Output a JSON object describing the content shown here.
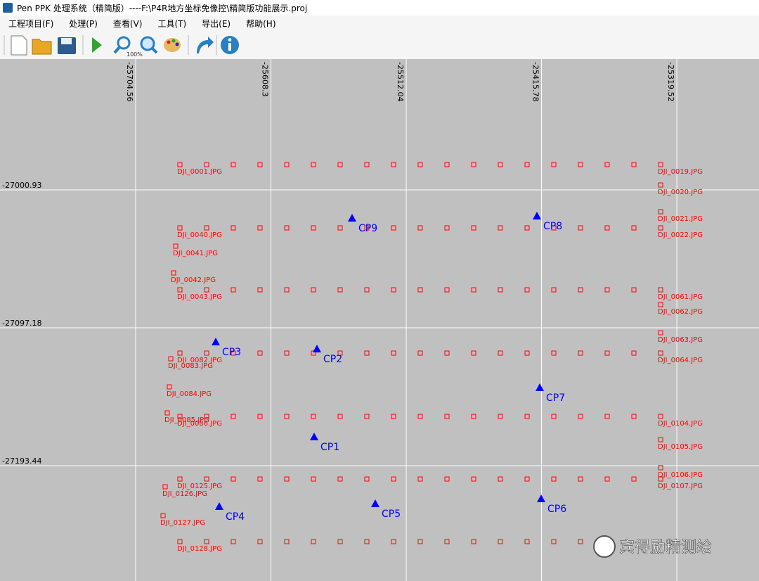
{
  "window": {
    "title": "Pen PPK 处理系统（精简版）----F:\\P4R地方坐标免像控\\精简版功能展示.proj"
  },
  "menu": [
    "工程项目(F)",
    "处理(P)",
    "查看(V)",
    "工具(T)",
    "导出(E)",
    "帮助(H)"
  ],
  "toolbar": {
    "zoom_badge": "100%"
  },
  "chart_data": {
    "type": "scatter",
    "xlim": [
      -25801.07,
      -25261.07
    ],
    "ylim": [
      -27273.98,
      -26909.59
    ],
    "xticks": [
      -25704.56,
      -25608.3,
      -25512.04,
      -25415.78,
      -25319.52
    ],
    "yticks": [
      -27000.93,
      -27097.18,
      -27193.44
    ],
    "grid": true,
    "photo_color": "#ff0000",
    "control_color": "#0000ff",
    "strips": [
      {
        "y": -26983.26,
        "x": [
          -25654.07,
          -25635.07,
          -25616.07,
          -25597.07,
          -25578.07,
          -25559.07,
          -25540.07,
          -25521.07,
          -25502.07,
          -25483.07,
          -25464.07,
          -25445.07,
          -25426.07,
          -25407.07,
          -25388.07,
          -25369.07,
          -25350.07
        ]
      },
      {
        "y": -27027.45,
        "x": [
          -25654.07,
          -25635.07,
          -25616.07,
          -25597.07,
          -25578.07,
          -25559.07,
          -25540.07,
          -25521.07,
          -25502.07,
          -25483.07,
          -25464.07,
          -25445.07,
          -25426.07,
          -25407.07,
          -25388.07,
          -25369.07,
          -25350.07
        ]
      },
      {
        "y": -27070.67,
        "x": [
          -25654.07,
          -25635.07,
          -25616.07,
          -25597.07,
          -25578.07,
          -25559.07,
          -25540.07,
          -25521.07,
          -25502.07,
          -25483.07,
          -25464.07,
          -25445.07,
          -25426.07,
          -25407.07,
          -25388.07,
          -25369.07,
          -25350.07
        ]
      },
      {
        "y": -27114.87,
        "x": [
          -25654.07,
          -25635.07,
          -25616.07,
          -25597.07,
          -25578.07,
          -25559.07,
          -25540.07,
          -25521.07,
          -25502.07,
          -25483.07,
          -25464.07,
          -25445.07,
          -25426.07,
          -25407.07,
          -25388.07,
          -25369.07,
          -25350.07
        ]
      },
      {
        "y": -27159.07,
        "x": [
          -25654.07,
          -25635.07,
          -25616.07,
          -25597.07,
          -25578.07,
          -25559.07,
          -25540.07,
          -25521.07,
          -25502.07,
          -25483.07,
          -25464.07,
          -25445.07,
          -25426.07,
          -25407.07,
          -25388.07,
          -25369.07,
          -25350.07
        ]
      },
      {
        "y": -27202.78,
        "x": [
          -25654.07,
          -25635.07,
          -25616.07,
          -25597.07,
          -25578.07,
          -25559.07,
          -25540.07,
          -25521.07,
          -25502.07,
          -25483.07,
          -25464.07,
          -25445.07,
          -25426.07,
          -25407.07,
          -25388.07,
          -25369.07,
          -25350.07
        ]
      },
      {
        "y": -27246.48,
        "x": [
          -25654.07,
          -25635.07,
          -25616.07,
          -25597.07,
          -25578.07,
          -25559.07,
          -25540.07,
          -25521.07,
          -25502.07,
          -25483.07,
          -25464.07,
          -25445.07,
          -25426.07,
          -25407.07,
          -25388.07
        ]
      }
    ],
    "photos": [
      {
        "name": "DJI_0001.JPG",
        "x": -25673.07,
        "y": -26983.26
      },
      {
        "name": "DJI_0019.JPG",
        "x": -25331.07,
        "y": -26983.26
      },
      {
        "name": "DJI_0020.JPG",
        "x": -25331.07,
        "y": -26997.5
      },
      {
        "name": "DJI_0021.JPG",
        "x": -25331.07,
        "y": -27016.16
      },
      {
        "name": "DJI_0022.JPG",
        "x": -25331.07,
        "y": -27027.45
      },
      {
        "name": "DJI_0040.JPG",
        "x": -25673.07,
        "y": -27027.45
      },
      {
        "name": "DJI_0041.JPG",
        "x": -25676.07,
        "y": -27040.22
      },
      {
        "name": "DJI_0042.JPG",
        "x": -25677.57,
        "y": -27058.88
      },
      {
        "name": "DJI_0043.JPG",
        "x": -25673.07,
        "y": -27070.67
      },
      {
        "name": "DJI_0061.JPG",
        "x": -25331.07,
        "y": -27070.67
      },
      {
        "name": "DJI_0062.JPG",
        "x": -25331.07,
        "y": -27080.98
      },
      {
        "name": "DJI_0063.JPG",
        "x": -25331.07,
        "y": -27100.63
      },
      {
        "name": "DJI_0064.JPG",
        "x": -25331.07,
        "y": -27114.87
      },
      {
        "name": "DJI_0082.JPG",
        "x": -25673.07,
        "y": -27114.87
      },
      {
        "name": "DJI_0083.JPG",
        "x": -25679.57,
        "y": -27118.8
      },
      {
        "name": "DJI_0084.JPG",
        "x": -25680.57,
        "y": -27138.44
      },
      {
        "name": "DJI_0085.JPG",
        "x": -25682.07,
        "y": -27156.61
      },
      {
        "name": "DJI_0086.JPG",
        "x": -25673.07,
        "y": -27159.07
      },
      {
        "name": "DJI_0104.JPG",
        "x": -25331.07,
        "y": -27159.07
      },
      {
        "name": "DJI_0105.JPG",
        "x": -25331.07,
        "y": -27175.28
      },
      {
        "name": "DJI_0106.JPG",
        "x": -25331.07,
        "y": -27194.92
      },
      {
        "name": "DJI_0107.JPG",
        "x": -25331.07,
        "y": -27202.78
      },
      {
        "name": "DJI_0125.JPG",
        "x": -25673.07,
        "y": -27202.78
      },
      {
        "name": "DJI_0126.JPG",
        "x": -25683.57,
        "y": -27208.18
      },
      {
        "name": "DJI_0127.JPG",
        "x": -25685.07,
        "y": -27228.31
      },
      {
        "name": "DJI_0128.JPG",
        "x": -25673.07,
        "y": -27246.48
      }
    ],
    "control_points": [
      {
        "name": "CP1",
        "x": -25577.57,
        "y": -27173.31
      },
      {
        "name": "CP2",
        "x": -25575.57,
        "y": -27111.92
      },
      {
        "name": "CP3",
        "x": -25647.57,
        "y": -27107.01
      },
      {
        "name": "CP4",
        "x": -25645.07,
        "y": -27221.93
      },
      {
        "name": "CP5",
        "x": -25534.07,
        "y": -27219.97
      },
      {
        "name": "CP6",
        "x": -25416.07,
        "y": -27216.53
      },
      {
        "name": "CP7",
        "x": -25417.07,
        "y": -27138.93
      },
      {
        "name": "CP8",
        "x": -25419.07,
        "y": -27019.11
      },
      {
        "name": "CP9",
        "x": -25550.57,
        "y": -27020.58
      }
    ]
  },
  "watermark": "宾得励精测绘"
}
